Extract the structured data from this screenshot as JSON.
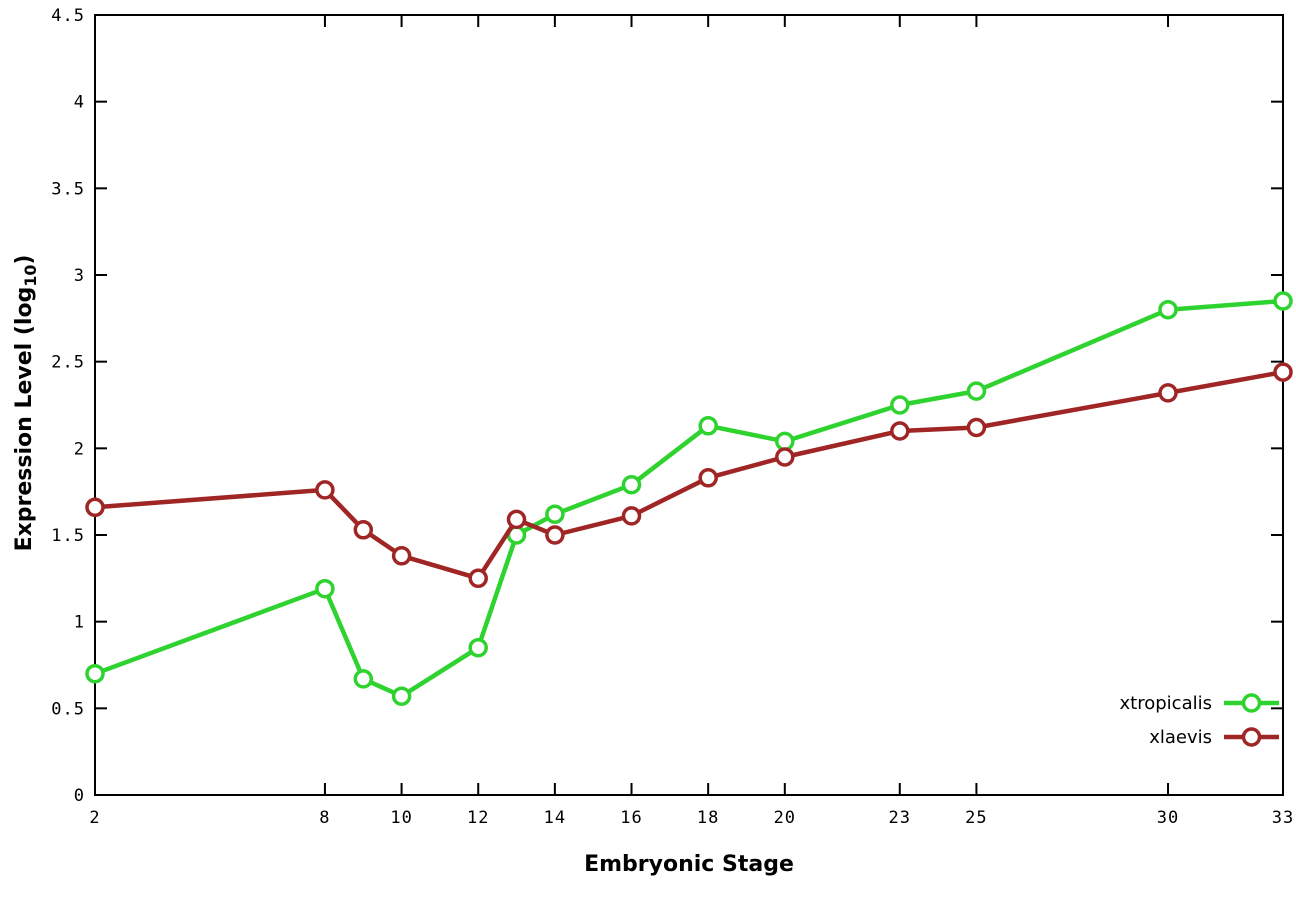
{
  "chart_data": {
    "type": "line",
    "title": "",
    "xlabel": "Embryonic Stage",
    "ylabel": "Expression Level (log10)",
    "ylabel_parts": {
      "prefix": "Expression Level (log",
      "sub": "10",
      "suffix": ")"
    },
    "xlim": [
      2,
      33
    ],
    "ylim": [
      0,
      4.5
    ],
    "grid": false,
    "legend_position": "bottom-right-inside",
    "background_color": "#ffffff",
    "border_color": "#000000",
    "x": [
      2,
      8,
      9,
      10,
      12,
      13,
      14,
      16,
      18,
      20,
      23,
      25,
      30,
      33
    ],
    "xticks": [
      {
        "value": 2,
        "label": "2"
      },
      {
        "value": 8,
        "label": "8"
      },
      {
        "value": 10,
        "label": "10"
      },
      {
        "value": 12,
        "label": "12"
      },
      {
        "value": 14,
        "label": "14"
      },
      {
        "value": 16,
        "label": "16"
      },
      {
        "value": 18,
        "label": "18"
      },
      {
        "value": 20,
        "label": "20"
      },
      {
        "value": 23,
        "label": "23"
      },
      {
        "value": 25,
        "label": "25"
      },
      {
        "value": 30,
        "label": "30"
      },
      {
        "value": 33,
        "label": "33"
      }
    ],
    "yticks": [
      {
        "value": 0,
        "label": "0"
      },
      {
        "value": 0.5,
        "label": "0.5"
      },
      {
        "value": 1,
        "label": "1"
      },
      {
        "value": 1.5,
        "label": "1.5"
      },
      {
        "value": 2,
        "label": "2"
      },
      {
        "value": 2.5,
        "label": "2.5"
      },
      {
        "value": 3,
        "label": "3"
      },
      {
        "value": 3.5,
        "label": "3.5"
      },
      {
        "value": 4,
        "label": "4"
      },
      {
        "value": 4.5,
        "label": "4.5"
      }
    ],
    "series": [
      {
        "name": "xtropicalis",
        "color": "#2fd32f",
        "marker": "open-circle",
        "values": [
          0.7,
          1.19,
          0.67,
          0.57,
          0.85,
          1.5,
          1.62,
          1.79,
          2.13,
          2.04,
          2.25,
          2.33,
          2.8,
          2.85
        ]
      },
      {
        "name": "xlaevis",
        "color": "#a02626",
        "marker": "open-circle",
        "values": [
          1.66,
          1.76,
          1.53,
          1.38,
          1.25,
          1.59,
          1.5,
          1.61,
          1.83,
          1.95,
          2.1,
          2.12,
          2.32,
          2.44
        ]
      }
    ]
  }
}
